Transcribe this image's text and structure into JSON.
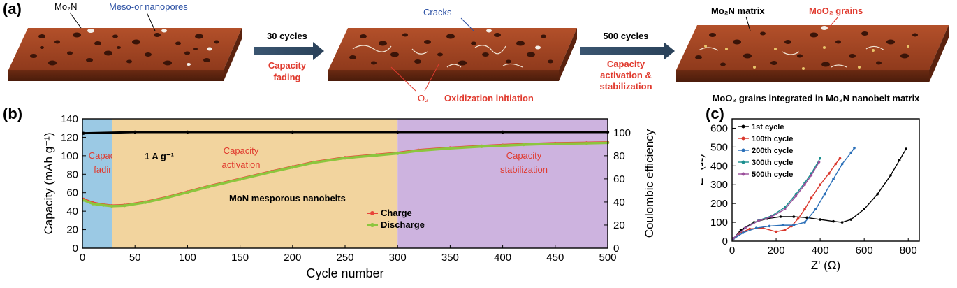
{
  "panel_a": {
    "label": "(a)",
    "slab1_labels": {
      "mo2n": "Mo₂N",
      "pores": "Meso-or nanopores"
    },
    "arrow1": {
      "top": "30 cycles",
      "bottom_line1": "Capacity",
      "bottom_line2": "fading"
    },
    "slab2_labels": {
      "cracks": "Cracks",
      "o2": "O₂",
      "oxid": "Oxidization initiation"
    },
    "arrow2": {
      "top": "500 cycles",
      "bottom_line1": "Capacity",
      "bottom_line2": "activation &",
      "bottom_line3": "stabilization"
    },
    "slab3_labels": {
      "matrix": "Mo₂N matrix",
      "grains": "MoO₂ grains",
      "caption": "MoO₂ grains integrated in Mo₂N nanobelt matrix"
    }
  },
  "chart_data": [
    {
      "panel": "(b)",
      "type": "line",
      "xlabel": "Cycle number",
      "ylabel": "Capacity (mAh g⁻¹)",
      "ylabel_right": "Coulombic efficiency",
      "xlim": [
        0,
        500
      ],
      "ylim": [
        0,
        140
      ],
      "ylim_right": [
        0,
        112
      ],
      "xticks": [
        0,
        50,
        100,
        150,
        200,
        250,
        300,
        350,
        400,
        450,
        500
      ],
      "yticks": [
        0,
        20,
        40,
        60,
        80,
        100,
        120,
        140
      ],
      "yticks_right": [
        0,
        20,
        40,
        60,
        80,
        100
      ],
      "regions": [
        {
          "from": 0,
          "to": 28,
          "color": "#9bc9e4",
          "line1": "Capacity",
          "line2": "fading"
        },
        {
          "from": 28,
          "to": 300,
          "color": "#f2d49e",
          "line1": "Capacity",
          "line2": "activation"
        },
        {
          "from": 300,
          "to": 500,
          "color": "#cdb3df",
          "line1": "Capacity",
          "line2": "stabilization"
        }
      ],
      "annotations": {
        "current": "1 A g⁻¹",
        "material": "MoN mesporous nanobelts"
      },
      "legend": [
        "Charge",
        "Discharge"
      ],
      "series": [
        {
          "name": "Charge",
          "color": "#e8443a",
          "x": [
            1,
            10,
            20,
            28,
            40,
            60,
            80,
            100,
            120,
            150,
            180,
            200,
            220,
            250,
            280,
            300,
            320,
            350,
            380,
            400,
            420,
            450,
            480,
            500
          ],
          "values": [
            53,
            49,
            47,
            46,
            46.5,
            50,
            55,
            61,
            67,
            75,
            83,
            88,
            93,
            98,
            101,
            103,
            106,
            108.5,
            110.5,
            111.5,
            112.5,
            113.5,
            114,
            114.5
          ]
        },
        {
          "name": "Discharge",
          "color": "#8cc63e",
          "x": [
            1,
            10,
            20,
            28,
            40,
            60,
            80,
            100,
            120,
            150,
            180,
            200,
            220,
            250,
            280,
            300,
            320,
            350,
            380,
            400,
            420,
            450,
            480,
            500
          ],
          "values": [
            52,
            48,
            46.5,
            45.5,
            46,
            49.5,
            54.5,
            60.5,
            66.5,
            74.5,
            82.5,
            87.5,
            92.5,
            97.5,
            100.5,
            102.5,
            105.5,
            108,
            110,
            111,
            112,
            113,
            113.5,
            114
          ]
        },
        {
          "name": "Coulombic efficiency",
          "color": "#000000",
          "axis": "right",
          "x": [
            1,
            50,
            100,
            200,
            300,
            400,
            500
          ],
          "values": [
            99.5,
            100.5,
            100.5,
            100.5,
            100.5,
            100.5,
            100.5
          ]
        }
      ]
    },
    {
      "panel": "(c)",
      "type": "line",
      "xlabel": "Z' (Ω)",
      "ylabel": "−Z\" (Ω)",
      "xlim": [
        0,
        850
      ],
      "ylim": [
        0,
        650
      ],
      "xticks": [
        0,
        200,
        400,
        600,
        800
      ],
      "yticks": [
        0,
        100,
        200,
        300,
        400,
        500,
        600
      ],
      "legend": [
        "1st cycle",
        "100th cycle",
        "200th cycle",
        "300th cycle",
        "500th cycle"
      ],
      "series": [
        {
          "name": "1st cycle",
          "color": "#000000",
          "x": [
            5,
            40,
            100,
            160,
            220,
            280,
            340,
            400,
            460,
            500,
            540,
            600,
            660,
            720,
            760,
            790
          ],
          "values": [
            10,
            60,
            100,
            120,
            130,
            130,
            125,
            115,
            105,
            100,
            115,
            170,
            250,
            350,
            430,
            490
          ]
        },
        {
          "name": "100th cycle",
          "color": "#d9372c",
          "x": [
            5,
            30,
            80,
            140,
            200,
            240,
            270,
            300,
            330,
            360,
            400,
            440,
            470,
            490
          ],
          "values": [
            10,
            40,
            65,
            70,
            50,
            60,
            80,
            120,
            170,
            230,
            300,
            360,
            410,
            440
          ]
        },
        {
          "name": "200th cycle",
          "color": "#2a6fb8",
          "x": [
            5,
            50,
            110,
            170,
            230,
            280,
            330,
            380,
            420,
            460,
            500,
            540,
            555
          ],
          "values": [
            10,
            45,
            70,
            80,
            85,
            85,
            100,
            170,
            250,
            330,
            410,
            470,
            495
          ]
        },
        {
          "name": "300th cycle",
          "color": "#1a8f8f",
          "x": [
            5,
            60,
            120,
            180,
            240,
            290,
            330,
            360,
            400
          ],
          "values": [
            15,
            70,
            110,
            135,
            180,
            250,
            310,
            360,
            440
          ]
        },
        {
          "name": "500th cycle",
          "color": "#9b4f9b",
          "x": [
            5,
            60,
            120,
            180,
            240,
            290,
            330,
            360,
            395
          ],
          "values": [
            15,
            70,
            108,
            130,
            170,
            240,
            300,
            350,
            420
          ]
        }
      ]
    }
  ]
}
